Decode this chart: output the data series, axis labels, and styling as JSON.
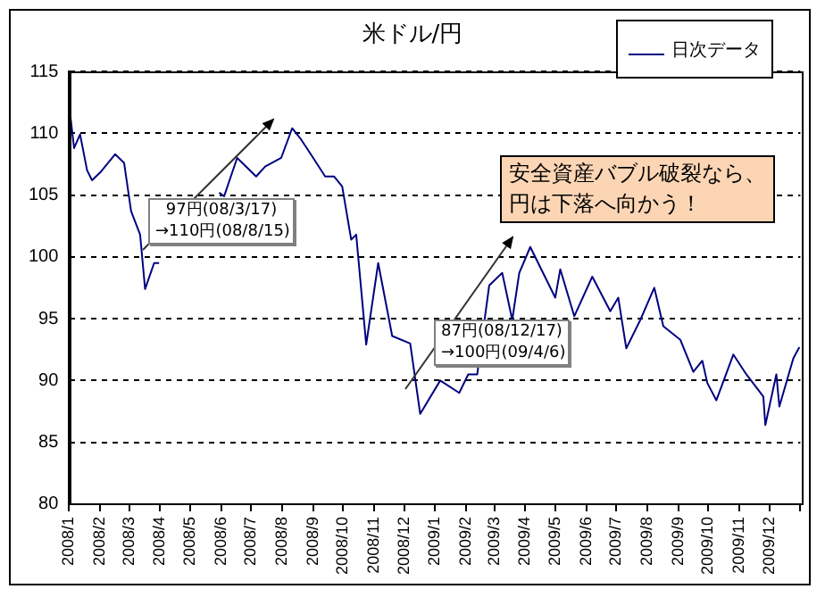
{
  "chart_data": {
    "type": "line",
    "title": "米ドル/円",
    "x": [
      "2008-01-02",
      "2008-01-06",
      "2008-01-12",
      "2008-01-19",
      "2008-01-24",
      "2008-02-02",
      "2008-02-16",
      "2008-02-25",
      "2008-03-03",
      "2008-03-12",
      "2008-03-17",
      "2008-03-26",
      "2008-03-31",
      "2008-04-25",
      "2008-05-30",
      "2008-06-04",
      "2008-06-17",
      "2008-06-26",
      "2008-07-06",
      "2008-07-15",
      "2008-07-31",
      "2008-08-11",
      "2008-08-19",
      "2008-08-28",
      "2008-09-13",
      "2008-09-22",
      "2008-09-30",
      "2008-10-09",
      "2008-10-14",
      "2008-10-24",
      "2008-11-05",
      "2008-11-19",
      "2008-12-07",
      "2008-12-17",
      "2009-01-06",
      "2009-01-25",
      "2009-02-03",
      "2009-02-12",
      "2009-02-24",
      "2009-03-09",
      "2009-03-19",
      "2009-03-26",
      "2009-04-06",
      "2009-05-01",
      "2009-05-06",
      "2009-05-20",
      "2009-06-07",
      "2009-06-25",
      "2009-07-03",
      "2009-07-11",
      "2009-07-25",
      "2009-08-08",
      "2009-08-17",
      "2009-09-03",
      "2009-09-16",
      "2009-09-25",
      "2009-09-30",
      "2009-10-09",
      "2009-10-26",
      "2009-11-08",
      "2009-11-25",
      "2009-11-27",
      "2009-12-08",
      "2009-12-11",
      "2009-12-25",
      "2009-12-31"
    ],
    "series": [
      {
        "name": "日次データ",
        "color": "#000080",
        "values": [
          111.6,
          108.8,
          109.9,
          107,
          106.2,
          106.9,
          108.3,
          107.6,
          103.7,
          101.8,
          97.4,
          99.5,
          99.5,
          null,
          105.2,
          104.9,
          108,
          107.3,
          106.5,
          107.3,
          108,
          110.4,
          109.6,
          108.5,
          106.5,
          106.5,
          105.7,
          101.4,
          101.8,
          92.9,
          99.5,
          93.6,
          93,
          87.3,
          90,
          89,
          90.5,
          90.5,
          97.7,
          98.7,
          94.9,
          98.7,
          100.8,
          96.7,
          99,
          95.2,
          98.4,
          95.6,
          96.7,
          92.6,
          94.9,
          97.5,
          94.4,
          93.3,
          90.7,
          91.6,
          89.8,
          88.4,
          92.1,
          90.5,
          88.7,
          86.4,
          90.5,
          87.9,
          91.8,
          92.7
        ]
      }
    ],
    "xlim": [
      "2008-01-01",
      "2010-01-01"
    ],
    "xticks": [
      {
        "value": "2008-01-01",
        "label": "2008/1"
      },
      {
        "value": "2008-02-01",
        "label": "2008/2"
      },
      {
        "value": "2008-03-01",
        "label": "2008/3"
      },
      {
        "value": "2008-04-01",
        "label": "2008/4"
      },
      {
        "value": "2008-05-01",
        "label": "2008/5"
      },
      {
        "value": "2008-06-01",
        "label": "2008/6"
      },
      {
        "value": "2008-07-01",
        "label": "2008/7"
      },
      {
        "value": "2008-08-01",
        "label": "2008/8"
      },
      {
        "value": "2008-09-01",
        "label": "2008/9"
      },
      {
        "value": "2008-10-01",
        "label": "2008/10"
      },
      {
        "value": "2008-11-01",
        "label": "2008/11"
      },
      {
        "value": "2008-12-01",
        "label": "2008/12"
      },
      {
        "value": "2009-01-01",
        "label": "2009/1"
      },
      {
        "value": "2009-02-01",
        "label": "2009/2"
      },
      {
        "value": "2009-03-01",
        "label": "2009/3"
      },
      {
        "value": "2009-04-01",
        "label": "2009/4"
      },
      {
        "value": "2009-05-01",
        "label": "2009/5"
      },
      {
        "value": "2009-06-01",
        "label": "2009/6"
      },
      {
        "value": "2009-07-01",
        "label": "2009/7"
      },
      {
        "value": "2009-08-01",
        "label": "2009/8"
      },
      {
        "value": "2009-09-01",
        "label": "2009/9"
      },
      {
        "value": "2009-10-01",
        "label": "2009/10"
      },
      {
        "value": "2009-11-01",
        "label": "2009/11"
      },
      {
        "value": "2009-12-01",
        "label": "2009/12"
      },
      {
        "value": "2010-01-01",
        "label": null
      }
    ],
    "ylim": [
      80,
      115
    ],
    "yticks": [
      80,
      85,
      90,
      95,
      100,
      105,
      110,
      115
    ],
    "grid": "y",
    "legend": "top right",
    "line_style": "solid",
    "marker": "none",
    "annotations": [
      "97円(08/3/17)\n→110円(08/8/15)",
      "87円(08/12/17)\n→100円(09/4/6)",
      "安全資産バブル破裂なら、円は下落へ向かう！"
    ]
  }
}
